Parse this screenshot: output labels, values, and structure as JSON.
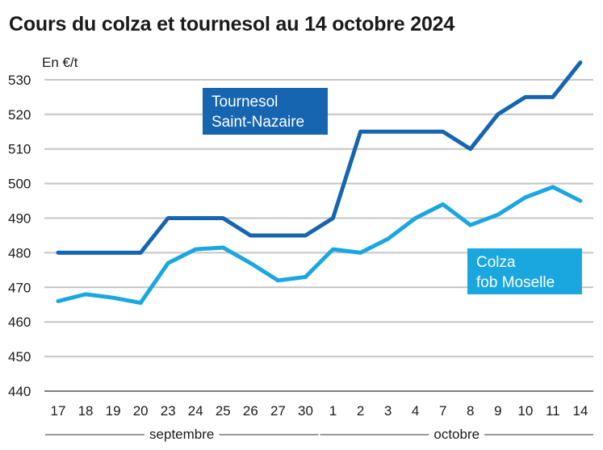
{
  "header": {
    "title": "Cours du colza et tournesol au 14 octobre 2024"
  },
  "chart_data": {
    "type": "line",
    "title": "Cours du colza et tournesol au 14 octobre 2024",
    "unit_label": "En €/t",
    "ylim": [
      440,
      535
    ],
    "yticks": [
      440,
      450,
      460,
      470,
      480,
      490,
      500,
      510,
      520,
      530
    ],
    "grid": true,
    "categories": [
      "17",
      "18",
      "19",
      "20",
      "23",
      "24",
      "25",
      "26",
      "27",
      "30",
      "1",
      "2",
      "3",
      "4",
      "7",
      "8",
      "9",
      "10",
      "11",
      "14"
    ],
    "month_groups": [
      {
        "label": "septembre",
        "start": 0,
        "end": 9
      },
      {
        "label": "octobre",
        "start": 10,
        "end": 19
      }
    ],
    "series": [
      {
        "name_lines": [
          "Tournesol",
          "Saint-Nazaire"
        ],
        "color": "#1565b0",
        "values": [
          480,
          480,
          480,
          480,
          490,
          490,
          490,
          485,
          485,
          485,
          490,
          515,
          515,
          515,
          515,
          510,
          520,
          525,
          525,
          535
        ]
      },
      {
        "name_lines": [
          "Colza",
          "fob Moselle"
        ],
        "color": "#1aa7e0",
        "values": [
          466,
          468,
          467,
          465.5,
          477,
          481,
          481.5,
          477,
          472,
          473,
          481,
          480,
          484,
          490,
          494,
          488,
          491,
          496,
          499,
          495
        ]
      }
    ]
  }
}
